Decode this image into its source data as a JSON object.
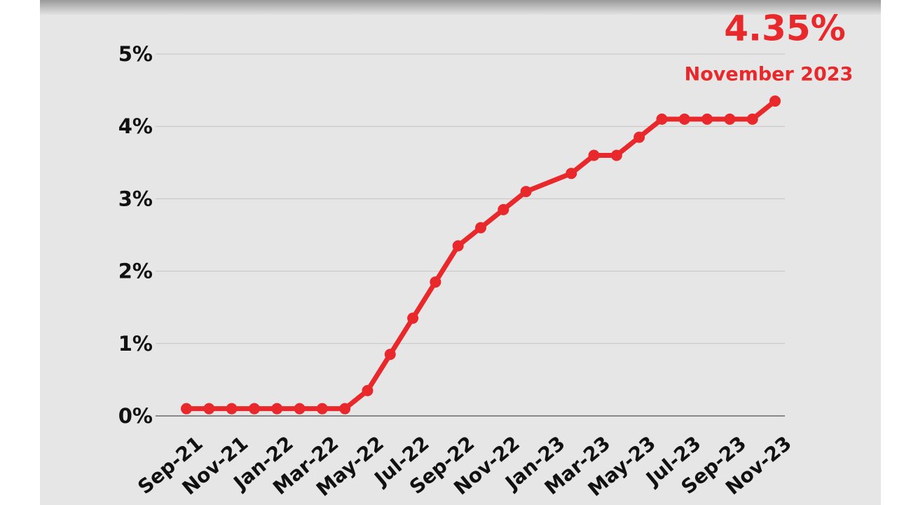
{
  "chart_data": {
    "type": "line",
    "categories": [
      "Sep-21",
      null,
      "Nov-21",
      null,
      "Jan-22",
      null,
      "Mar-22",
      null,
      "May-22",
      null,
      "Jul-22",
      null,
      "Sep-22",
      null,
      "Nov-22",
      null,
      "Jan-23",
      null,
      "Mar-23",
      null,
      "May-23",
      null,
      "Jul-23",
      null,
      "Sep-23",
      null,
      "Nov-23"
    ],
    "series": [
      {
        "color": "#e8282b",
        "values": [
          0.1,
          0.1,
          0.1,
          0.1,
          0.1,
          0.1,
          0.1,
          0.1,
          0.35,
          0.85,
          1.35,
          1.85,
          2.35,
          2.6,
          2.85,
          3.1,
          null,
          3.35,
          3.6,
          3.6,
          3.85,
          4.1,
          4.1,
          4.1,
          4.1,
          4.1,
          4.35
        ]
      }
    ],
    "ylim": [
      0,
      5
    ],
    "yticks": [
      {
        "value": 0,
        "label": "0%"
      },
      {
        "value": 1,
        "label": "1%"
      },
      {
        "value": 2,
        "label": "2%"
      },
      {
        "value": 3,
        "label": "3%"
      },
      {
        "value": 4,
        "label": "4%"
      },
      {
        "value": 5,
        "label": "5%"
      }
    ],
    "grid": true,
    "annotations": [
      "4.35%",
      "November 2023"
    ]
  }
}
